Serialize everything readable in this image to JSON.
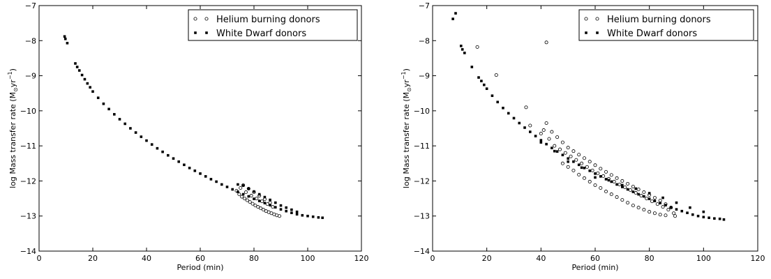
{
  "chart_data": [
    {
      "type": "scatter",
      "xlabel": "Period (min)",
      "ylabel": "log Mass transfer rate (M",
      "ylabel_unit": "yr",
      "ylabel_exp": "−1",
      "xlim": [
        0,
        120
      ],
      "ylim": [
        -14,
        -7
      ],
      "xticks": [
        0,
        20,
        40,
        60,
        80,
        100,
        120
      ],
      "yticks": [
        -14,
        -13,
        -12,
        -11,
        -10,
        -9,
        -8,
        -7
      ],
      "legend": {
        "position": "top-right",
        "entries": [
          {
            "label": "Helium burning donors",
            "marker": "open-circle"
          },
          {
            "label": "White Dwarf donors",
            "marker": "filled-square"
          }
        ]
      },
      "series": [
        {
          "name": "Helium burning donors",
          "marker": "open-circle",
          "points": [
            [
              73.5,
              -12.28
            ],
            [
              74.5,
              -12.38
            ],
            [
              75.5,
              -12.45
            ],
            [
              76.5,
              -12.5
            ],
            [
              77.5,
              -12.55
            ],
            [
              78.5,
              -12.6
            ],
            [
              79.5,
              -12.65
            ],
            [
              80.5,
              -12.7
            ],
            [
              81.5,
              -12.74
            ],
            [
              82.5,
              -12.78
            ],
            [
              83.5,
              -12.82
            ],
            [
              84.5,
              -12.86
            ],
            [
              85.5,
              -12.89
            ],
            [
              86.5,
              -12.92
            ],
            [
              87.5,
              -12.95
            ],
            [
              88.5,
              -12.98
            ],
            [
              89.5,
              -13.0
            ],
            [
              75,
              -12.2
            ],
            [
              77,
              -12.32
            ],
            [
              79,
              -12.42
            ],
            [
              81,
              -12.5
            ],
            [
              83,
              -12.58
            ],
            [
              85,
              -12.66
            ],
            [
              87,
              -12.74
            ],
            [
              76,
              -12.12
            ],
            [
              78,
              -12.22
            ],
            [
              80,
              -12.32
            ],
            [
              82,
              -12.42
            ],
            [
              84,
              -12.52
            ],
            [
              86,
              -12.62
            ]
          ]
        },
        {
          "name": "White Dwarf donors",
          "marker": "filled-square",
          "points": [
            [
              9.5,
              -7.88
            ],
            [
              9.8,
              -7.95
            ],
            [
              10.5,
              -8.07
            ],
            [
              13.5,
              -8.65
            ],
            [
              14.2,
              -8.75
            ],
            [
              15.0,
              -8.85
            ],
            [
              16.0,
              -8.98
            ],
            [
              17.0,
              -9.1
            ],
            [
              18.0,
              -9.22
            ],
            [
              19.0,
              -9.33
            ],
            [
              20.0,
              -9.45
            ],
            [
              22.0,
              -9.63
            ],
            [
              24.0,
              -9.8
            ],
            [
              26.0,
              -9.95
            ],
            [
              28.0,
              -10.1
            ],
            [
              30.0,
              -10.24
            ],
            [
              32.0,
              -10.37
            ],
            [
              34.0,
              -10.5
            ],
            [
              36.0,
              -10.62
            ],
            [
              38.0,
              -10.74
            ],
            [
              40.0,
              -10.85
            ],
            [
              42.0,
              -10.96
            ],
            [
              44.0,
              -11.07
            ],
            [
              46.0,
              -11.17
            ],
            [
              48.0,
              -11.27
            ],
            [
              50.0,
              -11.36
            ],
            [
              52.0,
              -11.45
            ],
            [
              54.0,
              -11.54
            ],
            [
              56.0,
              -11.63
            ],
            [
              58.0,
              -11.71
            ],
            [
              60.0,
              -11.79
            ],
            [
              62.0,
              -11.87
            ],
            [
              64.0,
              -11.95
            ],
            [
              66.0,
              -12.02
            ],
            [
              68.0,
              -12.1
            ],
            [
              70.0,
              -12.17
            ],
            [
              72.0,
              -12.24
            ],
            [
              74.0,
              -12.31
            ],
            [
              76.0,
              -12.38
            ],
            [
              78.0,
              -12.44
            ],
            [
              80.0,
              -12.51
            ],
            [
              82.0,
              -12.57
            ],
            [
              84.0,
              -12.63
            ],
            [
              86.0,
              -12.69
            ],
            [
              88.0,
              -12.75
            ],
            [
              90.0,
              -12.81
            ],
            [
              92.0,
              -12.86
            ],
            [
              94.0,
              -12.91
            ],
            [
              96.0,
              -12.95
            ],
            [
              98.0,
              -12.98
            ],
            [
              100.0,
              -13.0
            ],
            [
              102.0,
              -13.02
            ],
            [
              104.0,
              -13.04
            ],
            [
              105.5,
              -13.05
            ],
            [
              74.0,
              -12.1
            ],
            [
              76.0,
              -12.13
            ],
            [
              78.0,
              -12.22
            ],
            [
              80.0,
              -12.3
            ],
            [
              82.0,
              -12.38
            ],
            [
              84.0,
              -12.46
            ],
            [
              86.0,
              -12.54
            ],
            [
              88.0,
              -12.62
            ],
            [
              90.0,
              -12.7
            ],
            [
              92.0,
              -12.76
            ],
            [
              94.0,
              -12.82
            ],
            [
              96.0,
              -12.88
            ]
          ]
        }
      ]
    },
    {
      "type": "scatter",
      "xlabel": "Period (min)",
      "ylabel": "log Mass transfer rate (M",
      "ylabel_unit": "yr",
      "ylabel_exp": "−1",
      "xlim": [
        0,
        120
      ],
      "ylim": [
        -14,
        -7
      ],
      "xticks": [
        0,
        20,
        40,
        60,
        80,
        100,
        120
      ],
      "yticks": [
        -14,
        -13,
        -12,
        -11,
        -10,
        -9,
        -8,
        -7
      ],
      "legend": {
        "position": "top-right",
        "entries": [
          {
            "label": "Helium burning donors",
            "marker": "open-circle"
          },
          {
            "label": "White Dwarf donors",
            "marker": "filled-square"
          }
        ]
      },
      "series": [
        {
          "name": "Helium burning donors",
          "marker": "open-circle",
          "points": [
            [
              16.5,
              -8.18
            ],
            [
              23.5,
              -8.98
            ],
            [
              34.5,
              -9.9
            ],
            [
              36.0,
              -10.42
            ],
            [
              42.0,
              -8.05
            ],
            [
              40.0,
              -10.65
            ],
            [
              41.0,
              -10.55
            ],
            [
              42.0,
              -10.35
            ],
            [
              43.0,
              -10.8
            ],
            [
              44.0,
              -10.6
            ],
            [
              45.0,
              -11.0
            ],
            [
              46.0,
              -10.75
            ],
            [
              47.0,
              -11.1
            ],
            [
              48.0,
              -10.9
            ],
            [
              49.0,
              -11.2
            ],
            [
              50.0,
              -11.05
            ],
            [
              51.0,
              -11.3
            ],
            [
              52.0,
              -11.15
            ],
            [
              53.0,
              -11.4
            ],
            [
              54.0,
              -11.25
            ],
            [
              55.0,
              -11.5
            ],
            [
              56.0,
              -11.35
            ],
            [
              57.0,
              -11.6
            ],
            [
              58.0,
              -11.45
            ],
            [
              59.0,
              -11.7
            ],
            [
              60.0,
              -11.55
            ],
            [
              61.0,
              -11.78
            ],
            [
              62.0,
              -11.65
            ],
            [
              63.0,
              -11.86
            ],
            [
              64.0,
              -11.74
            ],
            [
              65.0,
              -11.94
            ],
            [
              66.0,
              -11.83
            ],
            [
              67.0,
              -12.02
            ],
            [
              68.0,
              -11.92
            ],
            [
              69.0,
              -12.1
            ],
            [
              70.0,
              -12.0
            ],
            [
              71.0,
              -12.18
            ],
            [
              72.0,
              -12.08
            ],
            [
              73.0,
              -12.26
            ],
            [
              74.0,
              -12.16
            ],
            [
              75.0,
              -12.34
            ],
            [
              76.0,
              -12.24
            ],
            [
              77.0,
              -12.42
            ],
            [
              78.0,
              -12.32
            ],
            [
              79.0,
              -12.5
            ],
            [
              80.0,
              -12.4
            ],
            [
              81.0,
              -12.58
            ],
            [
              82.0,
              -12.48
            ],
            [
              83.0,
              -12.66
            ],
            [
              84.0,
              -12.56
            ],
            [
              85.0,
              -12.74
            ],
            [
              86.0,
              -12.66
            ],
            [
              87.0,
              -12.82
            ],
            [
              88.0,
              -12.76
            ],
            [
              89.0,
              -12.92
            ],
            [
              89.5,
              -13.0
            ],
            [
              48.0,
              -11.5
            ],
            [
              50.0,
              -11.6
            ],
            [
              52.0,
              -11.7
            ],
            [
              54.0,
              -11.82
            ],
            [
              56.0,
              -11.92
            ],
            [
              58.0,
              -12.02
            ],
            [
              60.0,
              -12.12
            ],
            [
              62.0,
              -12.2
            ],
            [
              64.0,
              -12.3
            ],
            [
              66.0,
              -12.38
            ],
            [
              68.0,
              -12.46
            ],
            [
              70.0,
              -12.54
            ],
            [
              72.0,
              -12.62
            ],
            [
              74.0,
              -12.7
            ],
            [
              76.0,
              -12.76
            ],
            [
              78.0,
              -12.82
            ],
            [
              80.0,
              -12.88
            ],
            [
              82.0,
              -12.92
            ],
            [
              84.0,
              -12.96
            ],
            [
              86.0,
              -12.98
            ]
          ]
        },
        {
          "name": "White Dwarf donors",
          "marker": "filled-square",
          "points": [
            [
              7.5,
              -7.38
            ],
            [
              8.5,
              -7.22
            ],
            [
              10.5,
              -8.15
            ],
            [
              11.0,
              -8.25
            ],
            [
              11.8,
              -8.35
            ],
            [
              14.5,
              -8.75
            ],
            [
              17.0,
              -9.05
            ],
            [
              18.0,
              -9.15
            ],
            [
              19.0,
              -9.26
            ],
            [
              20.0,
              -9.37
            ],
            [
              22.0,
              -9.57
            ],
            [
              24.0,
              -9.75
            ],
            [
              26.0,
              -9.92
            ],
            [
              28.0,
              -10.07
            ],
            [
              30.0,
              -10.21
            ],
            [
              32.0,
              -10.35
            ],
            [
              34.0,
              -10.48
            ],
            [
              36.0,
              -10.6
            ],
            [
              38.0,
              -10.72
            ],
            [
              40.0,
              -10.84
            ],
            [
              42.0,
              -10.95
            ],
            [
              44.0,
              -11.06
            ],
            [
              46.0,
              -11.16
            ],
            [
              48.0,
              -11.26
            ],
            [
              50.0,
              -11.36
            ],
            [
              52.0,
              -11.45
            ],
            [
              54.0,
              -11.54
            ],
            [
              56.0,
              -11.63
            ],
            [
              58.0,
              -11.71
            ],
            [
              60.0,
              -11.79
            ],
            [
              62.0,
              -11.87
            ],
            [
              64.0,
              -11.95
            ],
            [
              66.0,
              -12.02
            ],
            [
              68.0,
              -12.1
            ],
            [
              70.0,
              -12.17
            ],
            [
              72.0,
              -12.24
            ],
            [
              74.0,
              -12.31
            ],
            [
              76.0,
              -12.38
            ],
            [
              78.0,
              -12.44
            ],
            [
              80.0,
              -12.51
            ],
            [
              82.0,
              -12.57
            ],
            [
              84.0,
              -12.63
            ],
            [
              86.0,
              -12.69
            ],
            [
              88.0,
              -12.75
            ],
            [
              90.0,
              -12.81
            ],
            [
              92.0,
              -12.86
            ],
            [
              94.0,
              -12.91
            ],
            [
              96.0,
              -12.96
            ],
            [
              98.0,
              -13.0
            ],
            [
              100.0,
              -13.03
            ],
            [
              102.0,
              -13.05
            ],
            [
              104.0,
              -13.07
            ],
            [
              106.0,
              -13.08
            ],
            [
              107.5,
              -13.1
            ],
            [
              40.0,
              -10.9
            ],
            [
              45.0,
              -11.15
            ],
            [
              50.0,
              -11.45
            ],
            [
              55.0,
              -11.62
            ],
            [
              60.0,
              -11.9
            ],
            [
              65.0,
              -11.98
            ],
            [
              70.0,
              -12.12
            ],
            [
              75.0,
              -12.22
            ],
            [
              80.0,
              -12.35
            ],
            [
              85.0,
              -12.48
            ],
            [
              90.0,
              -12.62
            ],
            [
              95.0,
              -12.76
            ],
            [
              100.0,
              -12.88
            ]
          ]
        }
      ]
    }
  ]
}
